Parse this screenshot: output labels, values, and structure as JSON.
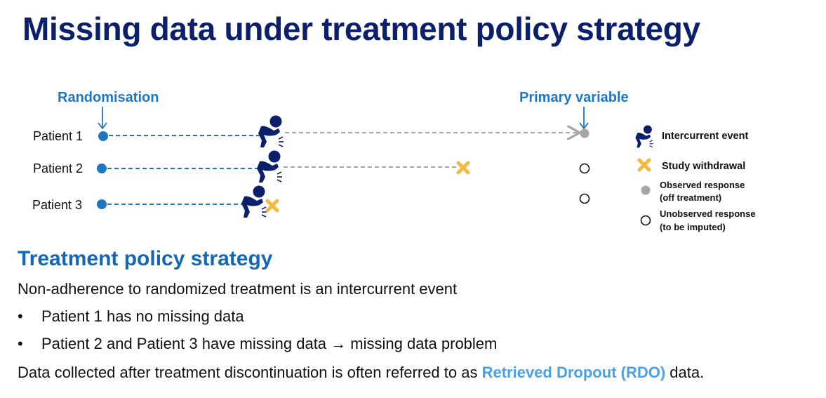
{
  "title": "Missing data under treatment policy strategy",
  "diagram": {
    "randomisation_label": "Randomisation",
    "primary_variable_label": "Primary variable",
    "patients": [
      {
        "label": "Patient 1"
      },
      {
        "label": "Patient 2"
      },
      {
        "label": "Patient 3"
      }
    ],
    "legend": {
      "intercurrent_event": "Intercurrent event",
      "study_withdrawal": "Study withdrawal",
      "observed_line1": "Observed response",
      "observed_line2": "(off treatment)",
      "unobserved_line1": "Unobserved response",
      "unobserved_line2": "(to be imputed)"
    },
    "colors": {
      "title": "#0b1f6b",
      "blue_line": "#1f76c0",
      "gray_line": "#a6a6a6",
      "withdrawal": "#f5b840",
      "figure": "#0b1f6b"
    }
  },
  "text": {
    "subtitle": "Treatment policy strategy",
    "intro": "Non-adherence to randomized treatment is an intercurrent event",
    "bullet_marker": "•",
    "bullets": [
      "Patient 1 has no missing data",
      "Patient 2 and Patient 3 have missing data → missing data problem"
    ],
    "footer_before": "Data collected after treatment discontinuation is often referred to as ",
    "footer_highlight": "Retrieved Dropout (RDO)",
    "footer_after": " data."
  }
}
